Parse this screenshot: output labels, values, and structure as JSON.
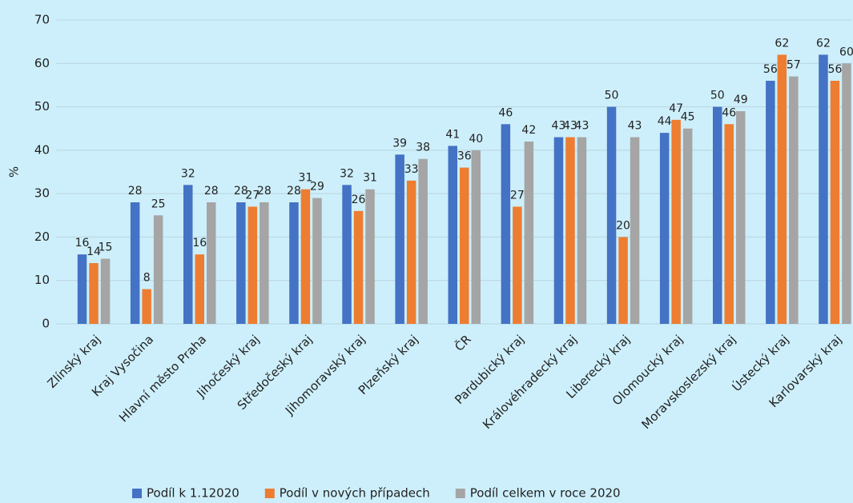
{
  "chart_data": {
    "type": "bar",
    "y_label": "%",
    "categories": [
      "Zlínský kraj",
      "Kraj Vysočina",
      "Hlavní město Praha",
      "Jihočeský kraj",
      "Středočeský kraj",
      "Jihomoravský kraj",
      "Plzeňský kraj",
      "ČR",
      "Pardubický kraj",
      "Královéhradecký kraj",
      "Liberecký kraj",
      "Olomoucký kraj",
      "Moravskoslezský kraj",
      "Ústecký kraj",
      "Karlovarský kraj"
    ],
    "series": [
      {
        "name": "Podíl k 1.12020",
        "color": "#4472c4",
        "values": [
          16,
          28,
          32,
          28,
          28,
          32,
          39,
          41,
          46,
          43,
          50,
          44,
          50,
          56,
          62
        ]
      },
      {
        "name": "Podíl v nových případech",
        "color": "#ed7d31",
        "values": [
          14,
          8,
          16,
          27,
          31,
          26,
          33,
          36,
          27,
          43,
          20,
          47,
          46,
          62,
          56
        ]
      },
      {
        "name": "Podíl celkem v roce 2020",
        "color": "#a5a5a5",
        "values": [
          15,
          25,
          28,
          28,
          29,
          31,
          38,
          40,
          42,
          43,
          43,
          45,
          49,
          57,
          60
        ]
      }
    ],
    "ylim": [
      0,
      70
    ],
    "yticks": [
      0,
      10,
      20,
      30,
      40,
      50,
      60,
      70
    ],
    "grid": true,
    "legend": "bottom"
  }
}
